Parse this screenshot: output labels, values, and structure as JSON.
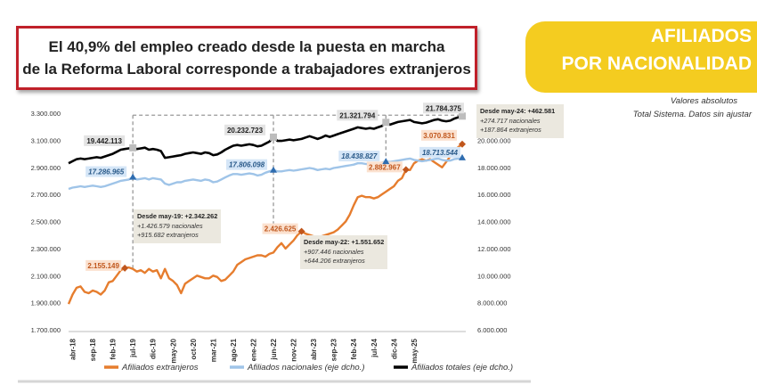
{
  "headline": {
    "line1": "El 40,9% del empleo creado desde la puesta en marcha",
    "line2": "de la Reforma Laboral corresponde a trabajadores extranjeros"
  },
  "tag": {
    "line1": "AFILIADOS",
    "line2": "POR NACIONALIDAD"
  },
  "notes": {
    "line1": "Valores absolutos",
    "line2": "Total Sistema. Datos sin ajustar"
  },
  "colors": {
    "extranjeros": "#e67d2e",
    "nacionales": "#9fc4e8",
    "totales": "#000000",
    "headline_border": "#c0202a",
    "tag_bg": "#f4cc20"
  },
  "chart_data": {
    "type": "line",
    "x_ticks": [
      "abr-18",
      "sep-18",
      "feb-19",
      "jul-19",
      "dic-19",
      "may-20",
      "oct-20",
      "mar-21",
      "ago-21",
      "ene-22",
      "jun-22",
      "nov-22",
      "abr-23",
      "sep-23",
      "feb-24",
      "jul-24",
      "dic-24",
      "may-25"
    ],
    "y_left": {
      "lim": [
        1700000,
        3300000
      ],
      "ticks": [
        "1.700.000",
        "1.900.000",
        "2.100.000",
        "2.300.000",
        "2.500.000",
        "2.700.000",
        "2.900.000",
        "3.100.000",
        "3.300.000"
      ]
    },
    "y_right": {
      "lim": [
        6000000,
        22000000
      ],
      "ticks": [
        "6.000.000",
        "8.000.000",
        "10.000.000",
        "12.000.000",
        "14.000.000",
        "16.000.000",
        "18.000.000",
        "20.000.000"
      ]
    },
    "series": [
      {
        "name": "Afiliados extranjeros",
        "axis": "left",
        "color": "#e67d2e",
        "values": [
          1890000,
          1960000,
          2010000,
          2020000,
          1980000,
          1970000,
          1990000,
          1980000,
          1960000,
          1990000,
          2050000,
          2060000,
          2100000,
          2140000,
          2155149,
          2160000,
          2150000,
          2130000,
          2140000,
          2120000,
          2150000,
          2130000,
          2140000,
          2080000,
          2150000,
          2080000,
          2060000,
          2030000,
          1970000,
          2040000,
          2060000,
          2080000,
          2100000,
          2090000,
          2080000,
          2080000,
          2100000,
          2090000,
          2060000,
          2070000,
          2100000,
          2130000,
          2180000,
          2200000,
          2220000,
          2230000,
          2240000,
          2250000,
          2250000,
          2240000,
          2260000,
          2270000,
          2310000,
          2340000,
          2300000,
          2330000,
          2360000,
          2400000,
          2426625,
          2410000,
          2400000,
          2390000,
          2380000,
          2390000,
          2400000,
          2410000,
          2420000,
          2440000,
          2470000,
          2500000,
          2550000,
          2620000,
          2680000,
          2690000,
          2680000,
          2680000,
          2670000,
          2680000,
          2700000,
          2720000,
          2740000,
          2760000,
          2800000,
          2820000,
          2882967,
          2880000,
          2930000,
          2950000,
          2960000,
          2950000,
          2960000,
          2940000,
          2920000,
          2900000,
          2940000,
          2980000,
          3010000,
          3050000,
          3070831
        ]
      },
      {
        "name": "Afiliados nacionales (eje dcho.)",
        "axis": "right",
        "color": "#9fc4e8",
        "values": [
          16400000,
          16500000,
          16550000,
          16600000,
          16550000,
          16600000,
          16650000,
          16600000,
          16550000,
          16600000,
          16700000,
          16800000,
          16900000,
          17000000,
          17050000,
          17100000,
          17286965,
          17100000,
          17150000,
          17200000,
          17100000,
          17200000,
          17150000,
          17100000,
          16800000,
          16700000,
          16800000,
          16900000,
          16900000,
          17000000,
          17050000,
          17100000,
          17050000,
          17000000,
          17100000,
          17050000,
          16900000,
          16950000,
          17100000,
          17250000,
          17400000,
          17500000,
          17500000,
          17450000,
          17500000,
          17550000,
          17500000,
          17400000,
          17450000,
          17600000,
          17700000,
          17806098,
          17700000,
          17700000,
          17750000,
          17800000,
          17750000,
          17800000,
          17850000,
          17900000,
          17950000,
          17900000,
          17800000,
          17850000,
          17900000,
          17850000,
          17950000,
          18000000,
          18050000,
          18100000,
          18150000,
          18200000,
          18300000,
          18300000,
          18250000,
          18250000,
          18200000,
          18300000,
          18350000,
          18438827,
          18400000,
          18450000,
          18500000,
          18550000,
          18600000,
          18650000,
          18550000,
          18500000,
          18450000,
          18500000,
          18550000,
          18600000,
          18650000,
          18550000,
          18500000,
          18500000,
          18600000,
          18650000,
          18713544
        ]
      },
      {
        "name": "Afiliados totales (eje dcho.)",
        "axis": "right",
        "color": "#000000",
        "values": [
          18300000,
          18450000,
          18600000,
          18650000,
          18600000,
          18650000,
          18700000,
          18750000,
          18700000,
          18800000,
          18900000,
          19000000,
          19150000,
          19300000,
          19350000,
          19400000,
          19442113,
          19350000,
          19400000,
          19450000,
          19300000,
          19350000,
          19300000,
          19200000,
          18700000,
          18750000,
          18800000,
          18850000,
          18900000,
          19000000,
          19050000,
          19100000,
          19050000,
          19000000,
          19100000,
          19050000,
          18900000,
          18950000,
          19100000,
          19300000,
          19450000,
          19600000,
          19650000,
          19600000,
          19650000,
          19700000,
          19650000,
          19550000,
          19600000,
          19750000,
          19900000,
          20232723,
          19950000,
          19950000,
          20000000,
          20050000,
          20000000,
          20050000,
          20100000,
          20200000,
          20300000,
          20200000,
          20100000,
          20200000,
          20350000,
          20250000,
          20350000,
          20450000,
          20550000,
          20650000,
          20750000,
          20850000,
          20950000,
          20900000,
          20850000,
          20900000,
          20850000,
          20950000,
          21050000,
          21321794,
          21150000,
          21250000,
          21350000,
          21400000,
          21450000,
          21500000,
          21350000,
          21300000,
          21250000,
          21300000,
          21400000,
          21500000,
          21550000,
          21450000,
          21400000,
          21450000,
          21600000,
          21700000,
          21784375
        ]
      }
    ],
    "data_labels": [
      {
        "text": "2.155.149",
        "series": 0,
        "index": 14
      },
      {
        "text": "2.426.625",
        "series": 0,
        "index": 58
      },
      {
        "text": "2.882.967",
        "series": 0,
        "index": 84
      },
      {
        "text": "3.070.831",
        "series": 0,
        "index": 98
      },
      {
        "text": "17.286.965",
        "series": 1,
        "index": 16
      },
      {
        "text": "17.806.098",
        "series": 1,
        "index": 51
      },
      {
        "text": "18.438.827",
        "series": 1,
        "index": 79
      },
      {
        "text": "18.713.544",
        "series": 1,
        "index": 98
      },
      {
        "text": "19.442.113",
        "series": 2,
        "index": 16
      },
      {
        "text": "20.232.723",
        "series": 2,
        "index": 51
      },
      {
        "text": "21.321.794",
        "series": 2,
        "index": 79
      },
      {
        "text": "21.784.375",
        "series": 2,
        "index": 98
      }
    ],
    "annotations": [
      {
        "title": "Desde may-19: +2.342.262",
        "lines": [
          "+1.426.579 nacionales",
          "+915.682 extranjeros"
        ]
      },
      {
        "title": "Desde may-22: +1.551.652",
        "lines": [
          "+907.446 nacionales",
          "+644.206 extranjeros"
        ]
      },
      {
        "title": "Desde may-24: +462.581",
        "lines": [
          "+274.717 nacionales",
          "+187.864 extranjeros"
        ]
      }
    ],
    "legend_position": "bottom"
  }
}
